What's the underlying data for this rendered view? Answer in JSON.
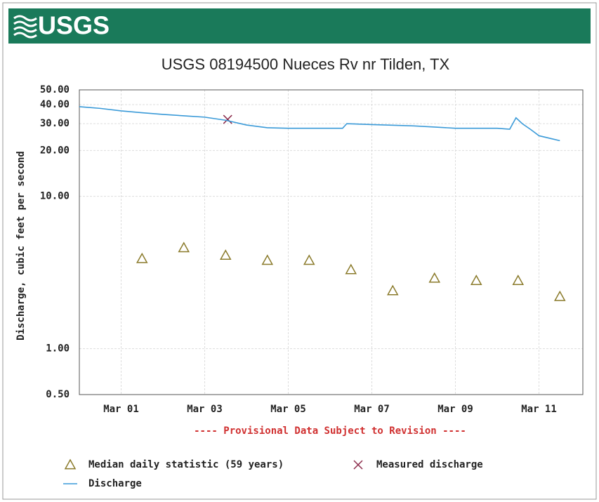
{
  "logo": "USGS",
  "chart_data": {
    "type": "line",
    "title": "USGS 08194500 Nueces Rv nr Tilden, TX",
    "y_label": "Discharge, cubic feet per second",
    "note": "---- Provisional Data Subject to Revision ----",
    "y_scale": "log",
    "grid": true,
    "legend": "bottom",
    "xlim": [
      0,
      12.05
    ],
    "xticks": [
      {
        "value": 1,
        "label": "Mar 01"
      },
      {
        "value": 3,
        "label": "Mar 03"
      },
      {
        "value": 5,
        "label": "Mar 05"
      },
      {
        "value": 7,
        "label": "Mar 07"
      },
      {
        "value": 9,
        "label": "Mar 09"
      },
      {
        "value": 11,
        "label": "Mar 11"
      }
    ],
    "ylim": [
      0.5,
      50
    ],
    "yticks": [
      {
        "value": 0.5,
        "label": "0.50"
      },
      {
        "value": 1,
        "label": "1.00"
      },
      {
        "value": 10,
        "label": "10.00"
      },
      {
        "value": 20,
        "label": "20.00"
      },
      {
        "value": 30,
        "label": "30.00"
      },
      {
        "value": 40,
        "label": "40.00"
      },
      {
        "value": 50,
        "label": "50.00"
      }
    ],
    "series": [
      {
        "name": "Median daily statistic (59 years)",
        "marker": "triangle",
        "color": "#8a7a2a",
        "x": [
          1.5,
          2.5,
          3.5,
          4.5,
          5.5,
          6.5,
          7.5,
          8.5,
          9.5,
          10.5,
          11.5
        ],
        "values": [
          3.9,
          4.6,
          4.1,
          3.8,
          3.8,
          3.3,
          2.4,
          2.9,
          2.8,
          2.8,
          2.2
        ]
      },
      {
        "name": "Measured discharge",
        "marker": "x",
        "color": "#8b2a4a",
        "x": [
          3.55
        ],
        "values": [
          32
        ]
      },
      {
        "name": "Discharge",
        "marker": "line",
        "color": "#3a9ad8",
        "x": [
          0,
          0.5,
          1,
          1.5,
          2,
          2.5,
          3,
          3.5,
          4,
          4.5,
          5,
          6,
          6.3,
          6.4,
          7,
          8,
          8.5,
          9,
          10,
          10.3,
          10.45,
          10.6,
          10.8,
          11,
          11.3,
          11.5
        ],
        "values": [
          38.8,
          37.8,
          36.4,
          35.4,
          34.5,
          33.8,
          33.1,
          31.6,
          29.4,
          28.2,
          28,
          28,
          28,
          30,
          29.6,
          29,
          28.5,
          28,
          28,
          27.6,
          32.8,
          30,
          27.5,
          25,
          23.9,
          23.2
        ]
      }
    ]
  }
}
